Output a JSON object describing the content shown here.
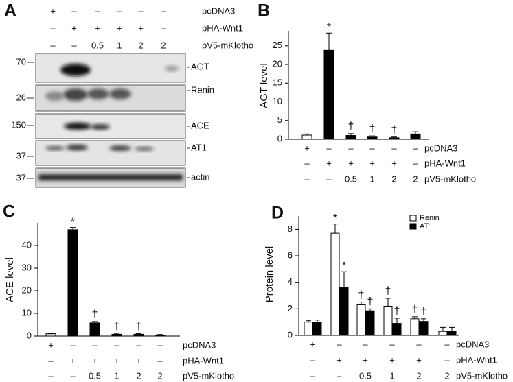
{
  "panel_a": {
    "letter": "A",
    "conditions": [
      {
        "label": "pcDNA3",
        "cells": [
          "+",
          "–",
          "–",
          "–",
          "–",
          "–"
        ]
      },
      {
        "label": "pHA-Wnt1",
        "cells": [
          "–",
          "+",
          "+",
          "+",
          "+",
          "–"
        ]
      },
      {
        "label": "pV5-mKlotho",
        "cells": [
          "–",
          "–",
          "0.5",
          "1",
          "2",
          "2"
        ]
      }
    ],
    "blots": [
      {
        "mw": "70",
        "label": "AGT"
      },
      {
        "mw": "26",
        "label": "Renin"
      },
      {
        "mw": "150",
        "label": "ACE"
      },
      {
        "mw": "37",
        "label": "AT1"
      },
      {
        "mw": "37",
        "label": "actin"
      }
    ]
  },
  "chart_data": [
    {
      "type": "bar",
      "letter": "B",
      "y_label": "AGT level",
      "ylim": [
        0,
        29
      ],
      "yticks": [
        0,
        5,
        10,
        15,
        20,
        25
      ],
      "series": [
        {
          "colors": [
            "#ffffff",
            "#000000",
            "#000000",
            "#000000",
            "#000000",
            "#000000"
          ],
          "values": [
            1.1,
            23.8,
            1.0,
            0.6,
            0.4,
            1.4
          ],
          "errors": [
            0.3,
            4.6,
            0.5,
            0.3,
            0.2,
            0.6
          ]
        }
      ],
      "annotations": [
        {
          "text": "*",
          "bar": 1,
          "series": 0
        },
        {
          "text": "†",
          "bar": 2,
          "series": 0
        },
        {
          "text": "†",
          "bar": 3,
          "series": 0
        },
        {
          "text": "†",
          "bar": 4,
          "series": 0
        }
      ],
      "conditions": [
        {
          "label": "pcDNA3",
          "cells": [
            "+",
            "–",
            "–",
            "–",
            "–",
            "–"
          ]
        },
        {
          "label": "pHA-Wnt1",
          "cells": [
            "–",
            "+",
            "+",
            "+",
            "+",
            "–"
          ]
        },
        {
          "label": "pV5-mKlotho",
          "cells": [
            "–",
            "–",
            "0.5",
            "1",
            "2",
            "2"
          ]
        }
      ]
    },
    {
      "type": "bar",
      "letter": "C",
      "y_label": "ACE level",
      "ylim": [
        0,
        50
      ],
      "yticks": [
        0,
        10,
        20,
        30,
        40
      ],
      "series": [
        {
          "colors": [
            "#ffffff",
            "#000000",
            "#000000",
            "#000000",
            "#000000",
            "#ffffff"
          ],
          "values": [
            1.0,
            47,
            5.8,
            0.8,
            0.8,
            0.3
          ],
          "errors": [
            0.2,
            1.0,
            0.6,
            0.4,
            0.3,
            0.4
          ]
        }
      ],
      "annotations": [
        {
          "text": "*",
          "bar": 1,
          "series": 0
        },
        {
          "text": "†",
          "bar": 2,
          "series": 0
        },
        {
          "text": "†",
          "bar": 3,
          "series": 0
        },
        {
          "text": "†",
          "bar": 4,
          "series": 0
        }
      ],
      "conditions": [
        {
          "label": "pcDNA3",
          "cells": [
            "+",
            "–",
            "–",
            "–",
            "–",
            "–"
          ]
        },
        {
          "label": "pHA-Wnt1",
          "cells": [
            "–",
            "+",
            "+",
            "+",
            "+",
            "–"
          ]
        },
        {
          "label": "pV5-mKlotho",
          "cells": [
            "–",
            "–",
            "0.5",
            "1",
            "2",
            "2"
          ]
        }
      ]
    },
    {
      "type": "bar",
      "letter": "D",
      "y_label": "Protein level",
      "ylim": [
        0,
        9
      ],
      "yticks": [
        0,
        2,
        4,
        6,
        8
      ],
      "series": [
        {
          "name": "Renin",
          "color": "#ffffff",
          "values": [
            1.0,
            7.7,
            2.35,
            2.2,
            1.25,
            0.3
          ],
          "errors": [
            0.1,
            0.7,
            0.15,
            0.6,
            0.15,
            0.3
          ]
        },
        {
          "name": "AT1",
          "color": "#000000",
          "values": [
            1.0,
            3.6,
            1.85,
            0.9,
            1.05,
            0.3
          ],
          "errors": [
            0.15,
            1.2,
            0.15,
            0.4,
            0.2,
            0.3
          ]
        }
      ],
      "annotations": [
        {
          "text": "*",
          "bar": 1,
          "series": 0
        },
        {
          "text": "*",
          "bar": 1,
          "series": 1
        },
        {
          "text": "†",
          "bar": 2,
          "series": 0
        },
        {
          "text": "†",
          "bar": 2,
          "series": 1
        },
        {
          "text": "†",
          "bar": 3,
          "series": 0
        },
        {
          "text": "†",
          "bar": 3,
          "series": 1
        },
        {
          "text": "†",
          "bar": 4,
          "series": 0
        },
        {
          "text": "†",
          "bar": 4,
          "series": 1
        }
      ],
      "conditions": [
        {
          "label": "pcDNA3",
          "cells": [
            "+",
            "–",
            "–",
            "–",
            "–",
            "–"
          ]
        },
        {
          "label": "pHA-Wnt1",
          "cells": [
            "–",
            "+",
            "+",
            "+",
            "+",
            "–"
          ]
        },
        {
          "label": "pV5-mKlotho",
          "cells": [
            "–",
            "–",
            "0.5",
            "1",
            "2",
            "2"
          ]
        }
      ]
    }
  ]
}
